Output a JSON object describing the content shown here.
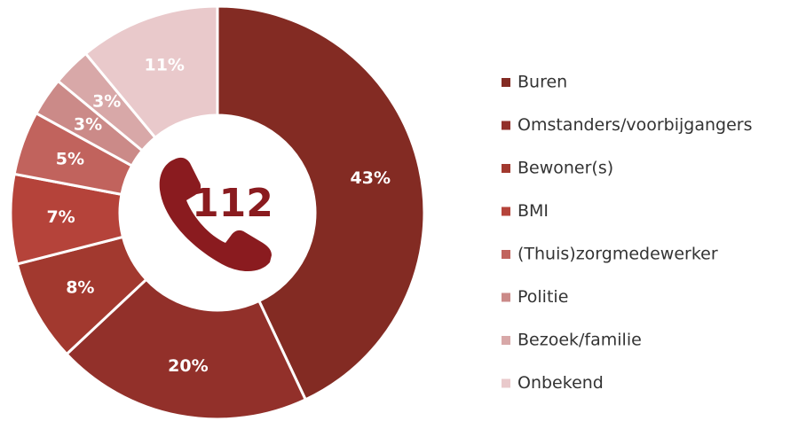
{
  "chart_data": {
    "type": "donut",
    "center_label": "112",
    "categories": [
      "Buren",
      "Omstanders/voorbijgangers",
      "Bewoner(s)",
      "BMI",
      "(Thuis)zorgmedewerker",
      "Politie",
      "Bezoek/familie",
      "Onbekend"
    ],
    "values": [
      43,
      20,
      8,
      7,
      5,
      3,
      3,
      11
    ],
    "value_labels": [
      "43%",
      "20%",
      "8%",
      "7%",
      "5%",
      "3%",
      "3%",
      "11%"
    ],
    "colors": [
      "#832b23",
      "#92302a",
      "#a2392f",
      "#b5433a",
      "#c1635d",
      "#cb8a88",
      "#d8a8a8",
      "#e9c9cb"
    ],
    "legend": "right"
  }
}
